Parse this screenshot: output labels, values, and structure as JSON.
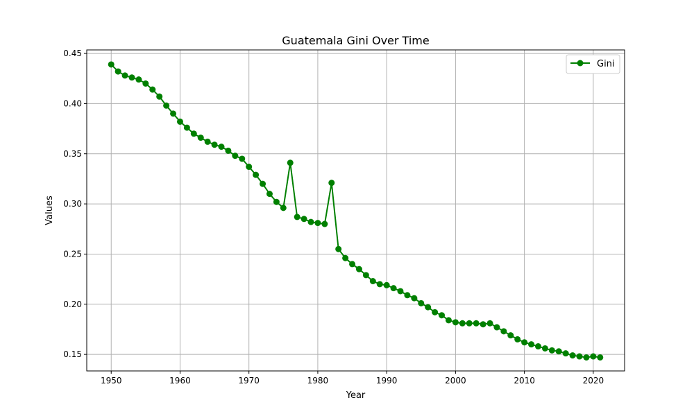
{
  "chart_data": {
    "type": "line",
    "title": "Guatemala Gini Over Time",
    "xlabel": "Year",
    "ylabel": "Values",
    "xlim": [
      1946.45,
      2024.55
    ],
    "ylim": [
      0.1335,
      0.4535
    ],
    "x_ticks": [
      1950,
      1960,
      1970,
      1980,
      1990,
      2000,
      2010,
      2020
    ],
    "y_ticks": [
      0.15,
      0.2,
      0.25,
      0.3,
      0.35,
      0.4,
      0.45
    ],
    "grid": true,
    "legend_position": "top-right",
    "colors": {
      "series": "#008000"
    },
    "series": [
      {
        "name": "Gini",
        "x": [
          1950,
          1951,
          1952,
          1953,
          1954,
          1955,
          1956,
          1957,
          1958,
          1959,
          1960,
          1961,
          1962,
          1963,
          1964,
          1965,
          1966,
          1967,
          1968,
          1969,
          1970,
          1971,
          1972,
          1973,
          1974,
          1975,
          1976,
          1977,
          1978,
          1979,
          1980,
          1981,
          1982,
          1983,
          1984,
          1985,
          1986,
          1987,
          1988,
          1989,
          1990,
          1991,
          1992,
          1993,
          1994,
          1995,
          1996,
          1997,
          1998,
          1999,
          2000,
          2001,
          2002,
          2003,
          2004,
          2005,
          2006,
          2007,
          2008,
          2009,
          2010,
          2011,
          2012,
          2013,
          2014,
          2015,
          2016,
          2017,
          2018,
          2019,
          2020,
          2021
        ],
        "values": [
          0.439,
          0.432,
          0.428,
          0.426,
          0.424,
          0.42,
          0.414,
          0.407,
          0.398,
          0.39,
          0.382,
          0.376,
          0.37,
          0.366,
          0.362,
          0.359,
          0.357,
          0.353,
          0.348,
          0.345,
          0.337,
          0.329,
          0.32,
          0.31,
          0.302,
          0.296,
          0.341,
          0.287,
          0.285,
          0.282,
          0.281,
          0.28,
          0.321,
          0.255,
          0.246,
          0.24,
          0.235,
          0.229,
          0.223,
          0.22,
          0.219,
          0.216,
          0.213,
          0.209,
          0.206,
          0.201,
          0.197,
          0.192,
          0.189,
          0.184,
          0.182,
          0.181,
          0.181,
          0.181,
          0.18,
          0.181,
          0.177,
          0.173,
          0.169,
          0.165,
          0.162,
          0.16,
          0.158,
          0.156,
          0.154,
          0.153,
          0.151,
          0.149,
          0.148,
          0.147,
          0.148,
          0.147
        ]
      }
    ]
  }
}
